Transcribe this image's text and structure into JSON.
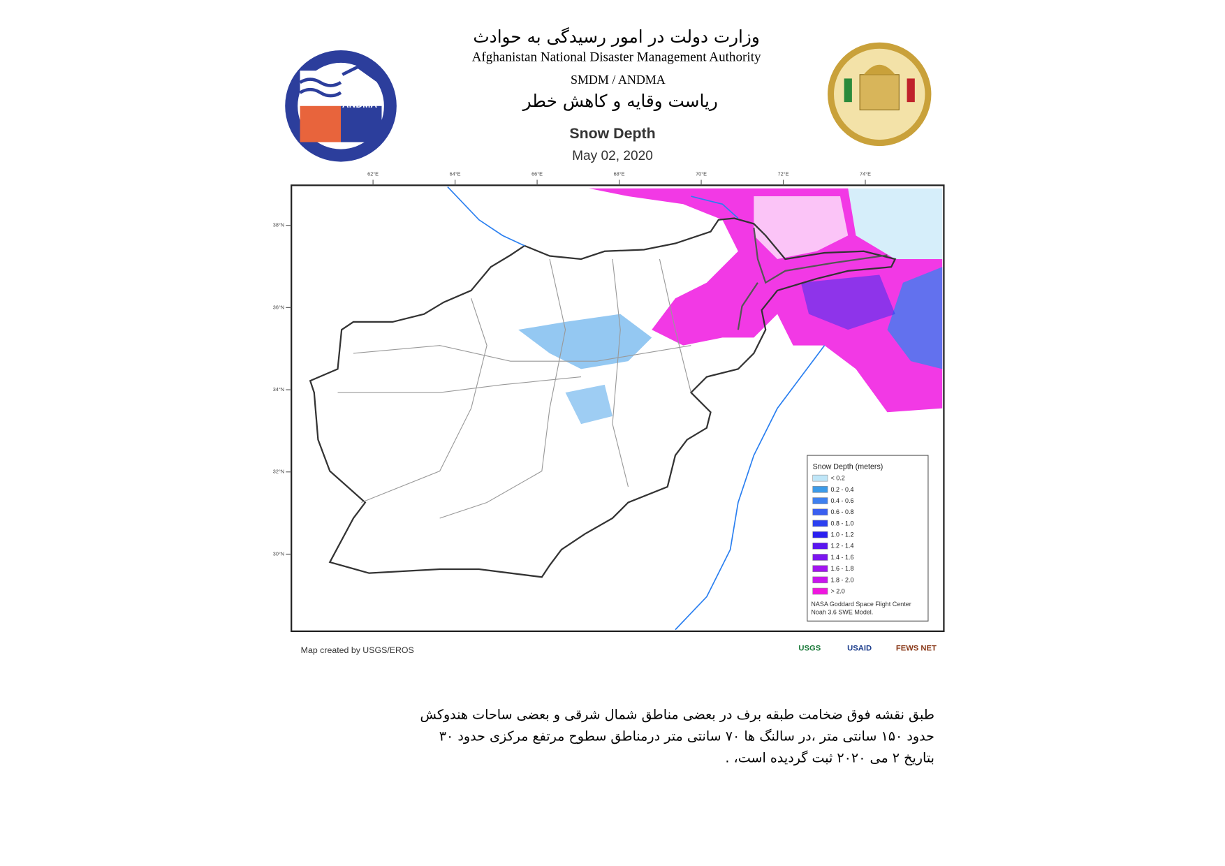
{
  "header": {
    "title_fa": "وزارت دولت در امور رسیدگی به حوادث",
    "title_en": "Afghanistan National Disaster Management Authority",
    "subtitle_en": "SMDM / ANDMA",
    "subtitle_fa": "ریاست وقایه و کاهش خطر",
    "logo_text": "ANDMA"
  },
  "map": {
    "title": "Snow Depth",
    "date": "May 02, 2020",
    "lon_labels": [
      "62°E",
      "64°E",
      "66°E",
      "68°E",
      "70°E",
      "72°E",
      "74°E"
    ],
    "lat_labels": [
      "38°N",
      "36°N",
      "34°N",
      "32°N",
      "30°N"
    ],
    "legend": {
      "title": "Snow Depth (meters)",
      "items": [
        {
          "label": "< 0.2",
          "color": "#bfe6f8"
        },
        {
          "label": "0.2 - 0.4",
          "color": "#3d9be8"
        },
        {
          "label": "0.4 - 0.6",
          "color": "#3f80ef"
        },
        {
          "label": "0.6 - 0.8",
          "color": "#3a5ff0"
        },
        {
          "label": "0.8 - 1.0",
          "color": "#2b40f0"
        },
        {
          "label": "1.0 - 1.2",
          "color": "#2a1ff0"
        },
        {
          "label": "1.2 - 1.4",
          "color": "#5a16f0"
        },
        {
          "label": "1.4 - 1.6",
          "color": "#7c15f0"
        },
        {
          "label": "1.6 - 1.8",
          "color": "#a215ef"
        },
        {
          "label": "1.8 - 2.0",
          "color": "#c916ee"
        },
        {
          "label": "> 2.0",
          "color": "#f016e0"
        }
      ],
      "source": [
        "NASA Goddard Space Flight Center",
        "Noah 3.6 SWE Model."
      ]
    },
    "credit": "Map created by USGS/EROS",
    "logos": [
      "USGS",
      "USAID",
      "FEWS NET"
    ]
  },
  "body": {
    "lines": [
      "طبق نقشه فوق ضخامت طبقه  برف  در بعضی مناطق  شمال شرقی  و بعضی ساحات هندوکش",
      "حدود ۱۵۰ سانتی متر ،در سالنگ ها  ۷۰ سانتی متر درمناطق  سطوح مرتفع مرکزی حدود  ۳۰",
      "بتاریخ  ۲ می ۲۰۲۰ ثبت گردیده است، ."
    ]
  }
}
